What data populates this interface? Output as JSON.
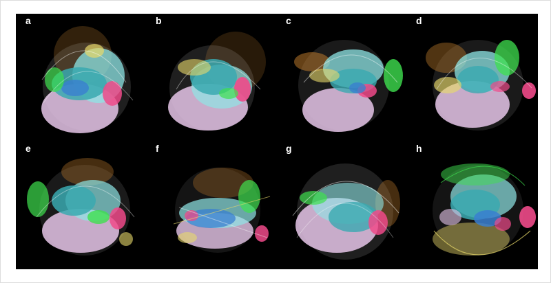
{
  "figure": {
    "panels": [
      {
        "label": "a"
      },
      {
        "label": "b"
      },
      {
        "label": "c"
      },
      {
        "label": "d"
      },
      {
        "label": "e"
      },
      {
        "label": "f"
      },
      {
        "label": "g"
      },
      {
        "label": "h"
      }
    ]
  },
  "colors": {
    "background": "#000000",
    "lavender": "#e6c6e9",
    "teal": "#3aa9b0",
    "cyan": "#8ee6e6",
    "green": "#3fe04f",
    "magenta": "#f04a8a",
    "orange": "#c9822e",
    "yellow": "#e8d86a",
    "blue": "#3a7fd0"
  }
}
